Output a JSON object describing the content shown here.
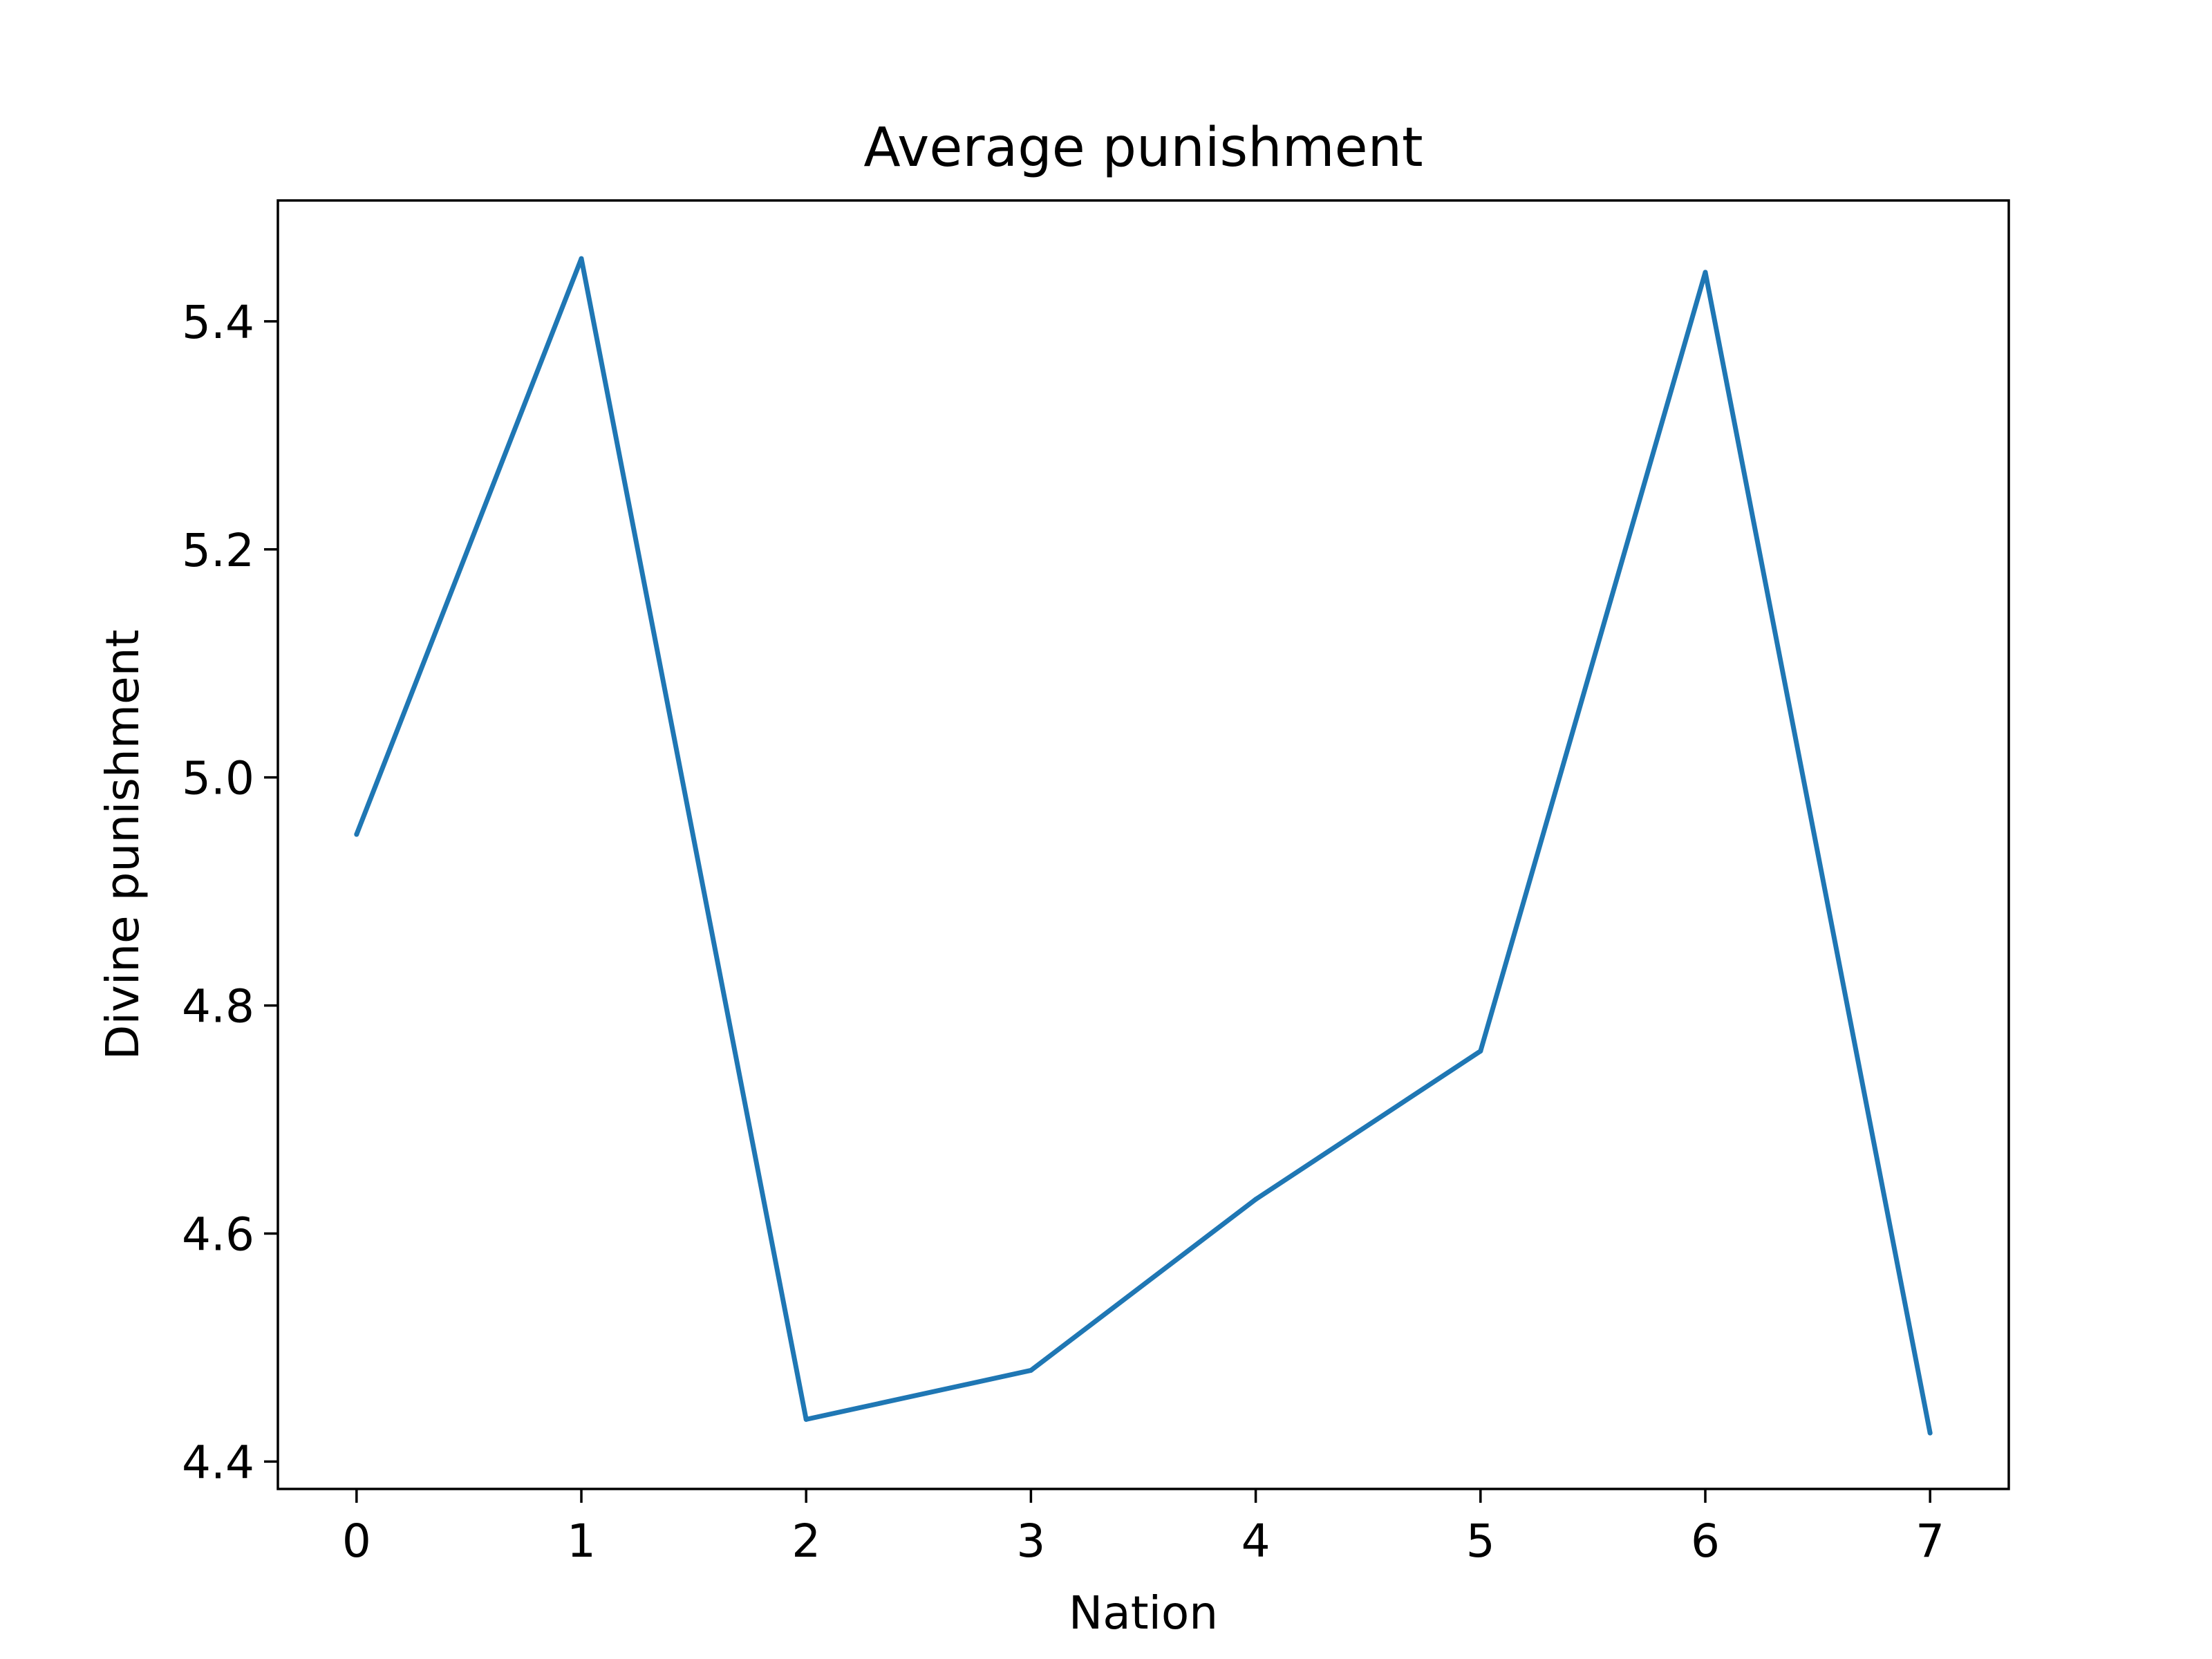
{
  "chart_data": {
    "type": "line",
    "title": "Average punishment",
    "xlabel": "Nation",
    "ylabel": "Divine punishment",
    "x": [
      0,
      1,
      2,
      3,
      4,
      5,
      6,
      7
    ],
    "series": [
      {
        "values": [
          4.95,
          5.455,
          4.437,
          4.48,
          4.63,
          4.76,
          5.443,
          4.425
        ]
      }
    ],
    "xticks": [
      0,
      1,
      2,
      3,
      4,
      5,
      6,
      7
    ],
    "xtick_labels": [
      "0",
      "1",
      "2",
      "3",
      "4",
      "5",
      "6",
      "7"
    ],
    "yticks": [
      4.4,
      4.6,
      4.8,
      5.0,
      5.2,
      5.4
    ],
    "ytick_labels": [
      "4.4",
      "4.6",
      "4.8",
      "5.0",
      "5.2",
      "5.4"
    ],
    "xlim": [
      -0.35,
      7.35
    ],
    "ylim": [
      4.376,
      5.506
    ],
    "grid": false,
    "legend": "none",
    "colors": {
      "line": "#1f77b4",
      "axes": "#000000",
      "background": "#ffffff"
    }
  }
}
